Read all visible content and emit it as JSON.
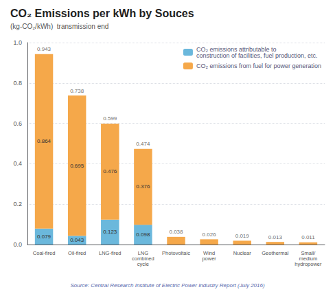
{
  "chart_data": {
    "type": "bar",
    "title": "CO₂ Emissions per kWh by Souces",
    "subtitle": "(kg-CO₂/kWh)  transmission end",
    "source": "Source: Central Research Institute of Electric Power Industry Report (July 2016)",
    "categories": [
      "Coal-fired",
      "Oil-fired",
      "LNG-fired",
      "LNG\ncombined\ncycle",
      "Photovoltaic",
      "Wind\npower",
      "Nuclear",
      "Geothermal",
      "Small/\nmedium\nhydropower"
    ],
    "series": [
      {
        "name": "CO₂ emissions attributable to\nconstruction of facilities, fuel production, etc.",
        "color": "#6BB8DC",
        "values": [
          0.079,
          0.043,
          0.123,
          0.098,
          0.0,
          0.0,
          0.0,
          0.0,
          0.0
        ],
        "value_labels": [
          "0.079",
          "0.043",
          "0.123",
          "0.098",
          null,
          null,
          null,
          null,
          null
        ]
      },
      {
        "name": "CO₂ emissions from fuel for power generation",
        "color": "#F5A84A",
        "values": [
          0.864,
          0.695,
          0.476,
          0.376,
          0.038,
          0.026,
          0.019,
          0.013,
          0.011
        ],
        "value_labels": [
          "0.864",
          "0.695",
          "0.476",
          "0.376",
          null,
          null,
          null,
          null,
          null
        ]
      }
    ],
    "totals": [
      0.943,
      0.738,
      0.599,
      0.474,
      0.038,
      0.026,
      0.019,
      0.013,
      0.011
    ],
    "stacked": true,
    "data_labels": true,
    "ylim": [
      0,
      1.0
    ],
    "yticks": [
      {
        "value": 0,
        "label": "0.0"
      },
      0.2,
      0.4,
      0.6,
      0.8,
      {
        "value": 1.0,
        "label": "1.0"
      }
    ],
    "grid": true,
    "legend": "upper right"
  }
}
